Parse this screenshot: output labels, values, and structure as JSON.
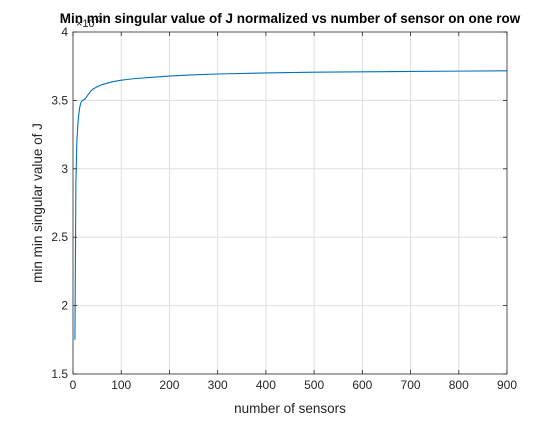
{
  "chart_data": {
    "type": "line",
    "title": "Min min singular value of J normalized vs number of sensor on one row",
    "xlabel": "number of sensors",
    "ylabel": "min min singular value of J",
    "xlim": [
      0,
      900
    ],
    "ylim": [
      1.5,
      4
    ],
    "xticks": [
      0,
      100,
      200,
      300,
      400,
      500,
      600,
      700,
      800,
      900
    ],
    "yticks": [
      1.5,
      2,
      2.5,
      3,
      3.5,
      4
    ],
    "xtick_labels": [
      "0",
      "100",
      "200",
      "300",
      "400",
      "500",
      "600",
      "700",
      "800",
      "900"
    ],
    "ytick_labels": [
      "1.5",
      "2",
      "2.5",
      "3",
      "3.5",
      "4"
    ],
    "y_exponent_base": "×10",
    "y_exponent_power": "-3",
    "grid": true,
    "series": [
      {
        "color": "#0072BD",
        "x": [
          4,
          6,
          8,
          10,
          12,
          14,
          16,
          18,
          20,
          25,
          30,
          35,
          40,
          50,
          60,
          80,
          100,
          130,
          160,
          200,
          250,
          300,
          400,
          500,
          600,
          700,
          800,
          900
        ],
        "values": [
          1.75,
          2.9,
          3.2,
          3.32,
          3.4,
          3.45,
          3.48,
          3.495,
          3.5,
          3.51,
          3.535,
          3.56,
          3.58,
          3.6,
          3.615,
          3.635,
          3.648,
          3.66,
          3.668,
          3.678,
          3.687,
          3.693,
          3.701,
          3.706,
          3.709,
          3.712,
          3.714,
          3.716
        ]
      }
    ]
  }
}
